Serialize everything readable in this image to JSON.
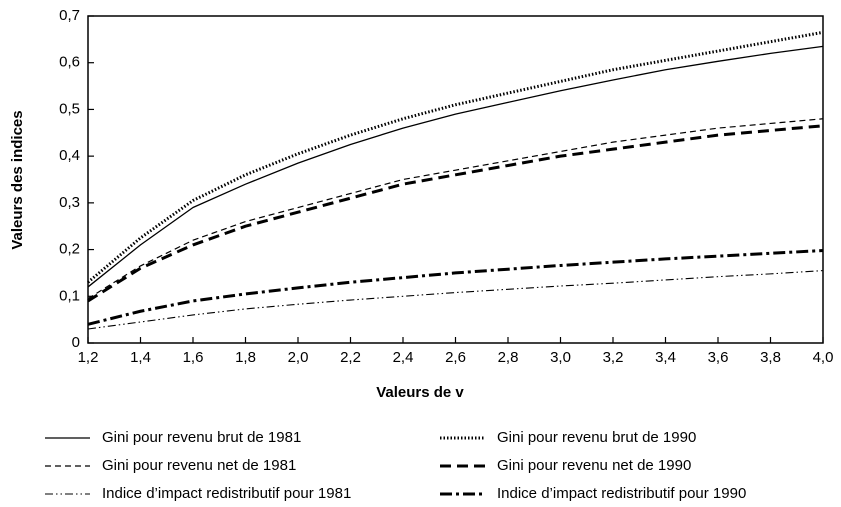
{
  "chart_data": {
    "type": "line",
    "xlabel": "Valeurs de v",
    "ylabel": "Valeurs des indices",
    "x": [
      1.2,
      1.4,
      1.6,
      1.8,
      2.0,
      2.2,
      2.4,
      2.6,
      2.8,
      3.0,
      3.2,
      3.4,
      3.6,
      3.8,
      4.0
    ],
    "series": [
      {
        "name": "Gini pour revenu brut de 1981",
        "color": "#000000",
        "line_style": "solid",
        "values": [
          0.12,
          0.21,
          0.29,
          0.34,
          0.385,
          0.425,
          0.46,
          0.49,
          0.515,
          0.54,
          0.563,
          0.585,
          0.603,
          0.62,
          0.635
        ]
      },
      {
        "name": "Gini pour revenu brut de 1990",
        "color": "#000000",
        "line_style": "dotted",
        "values": [
          0.13,
          0.225,
          0.305,
          0.36,
          0.405,
          0.445,
          0.48,
          0.51,
          0.535,
          0.56,
          0.585,
          0.605,
          0.625,
          0.645,
          0.665
        ]
      },
      {
        "name": "Gini pour revenu net de 1981",
        "color": "#000000",
        "line_style": "dashed",
        "values": [
          0.095,
          0.165,
          0.22,
          0.26,
          0.29,
          0.32,
          0.35,
          0.37,
          0.39,
          0.41,
          0.43,
          0.445,
          0.46,
          0.47,
          0.48
        ]
      },
      {
        "name": "Gini pour revenu net de 1990",
        "color": "#000000",
        "line_style": "dashed-bold",
        "values": [
          0.09,
          0.16,
          0.21,
          0.25,
          0.28,
          0.31,
          0.34,
          0.36,
          0.38,
          0.4,
          0.415,
          0.43,
          0.445,
          0.455,
          0.465
        ]
      },
      {
        "name": "Indice d’impact redistributif pour 1981",
        "color": "#000000",
        "line_style": "dash-dot-dot",
        "values": [
          0.03,
          0.045,
          0.06,
          0.073,
          0.083,
          0.092,
          0.1,
          0.108,
          0.115,
          0.122,
          0.128,
          0.135,
          0.142,
          0.148,
          0.155
        ]
      },
      {
        "name": "Indice d’impact redistributif pour 1990",
        "color": "#000000",
        "line_style": "dash-dot-bold",
        "values": [
          0.04,
          0.068,
          0.09,
          0.105,
          0.118,
          0.13,
          0.14,
          0.15,
          0.158,
          0.166,
          0.173,
          0.18,
          0.186,
          0.192,
          0.198
        ]
      }
    ],
    "xlim": [
      1.2,
      4.0
    ],
    "xticks": [
      {
        "value": 1.2,
        "label": "1,2"
      },
      {
        "value": 1.4,
        "label": "1,4"
      },
      {
        "value": 1.6,
        "label": "1,6"
      },
      {
        "value": 1.8,
        "label": "1,8"
      },
      {
        "value": 2.0,
        "label": "2,0"
      },
      {
        "value": 2.2,
        "label": "2,2"
      },
      {
        "value": 2.4,
        "label": "2,4"
      },
      {
        "value": 2.6,
        "label": "2,6"
      },
      {
        "value": 2.8,
        "label": "2,8"
      },
      {
        "value": 3.0,
        "label": "3,0"
      },
      {
        "value": 3.2,
        "label": "3,2"
      },
      {
        "value": 3.4,
        "label": "3,4"
      },
      {
        "value": 3.6,
        "label": "3,6"
      },
      {
        "value": 3.8,
        "label": "3,8"
      },
      {
        "value": 4.0,
        "label": "4,0"
      }
    ],
    "ylim": [
      0,
      0.7
    ],
    "yticks": [
      0,
      {
        "value": 0.1,
        "label": "0,1"
      },
      {
        "value": 0.2,
        "label": "0,2"
      },
      {
        "value": 0.3,
        "label": "0,3"
      },
      {
        "value": 0.4,
        "label": "0,4"
      },
      {
        "value": 0.5,
        "label": "0,5"
      },
      {
        "value": 0.6,
        "label": "0,6"
      },
      {
        "value": 0.7,
        "label": "0,7"
      }
    ],
    "grid": false,
    "legend_position": "bottom"
  }
}
